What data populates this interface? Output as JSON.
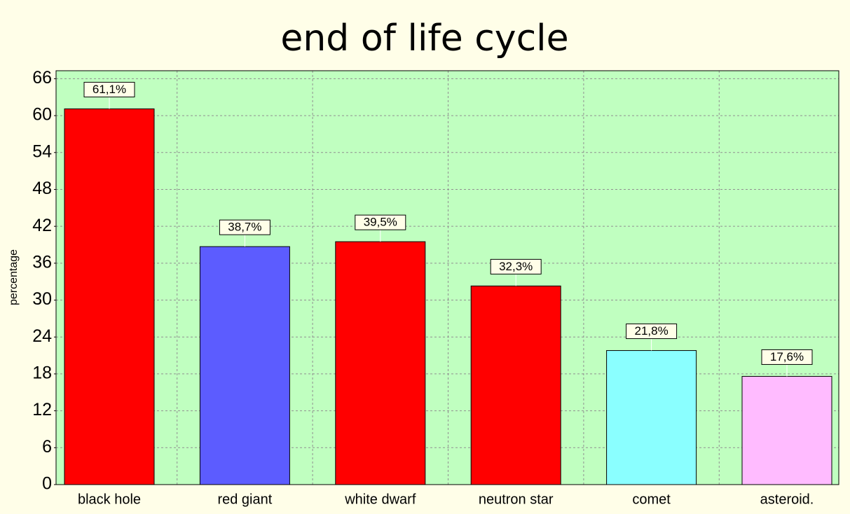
{
  "chart_data": {
    "type": "bar",
    "title": "end of life cycle",
    "y_label": "percentage",
    "categories": [
      "black hole",
      "red giant",
      "white dwarf",
      "neutron star",
      "comet",
      "asteroid."
    ],
    "values": [
      61.1,
      38.7,
      39.5,
      32.3,
      21.8,
      17.6
    ],
    "value_labels": [
      "61,1%",
      "38,7%",
      "39,5%",
      "32,3%",
      "21,8%",
      "17,6%"
    ],
    "colors": [
      "#ff0000",
      "#5c5cff",
      "#ff0000",
      "#ff0000",
      "#8affff",
      "#ffbbff"
    ],
    "ylim": [
      0,
      67.3
    ],
    "yticks": [
      0,
      6,
      12,
      18,
      24,
      30,
      36,
      42,
      48,
      54,
      60,
      66
    ],
    "grid": true
  }
}
